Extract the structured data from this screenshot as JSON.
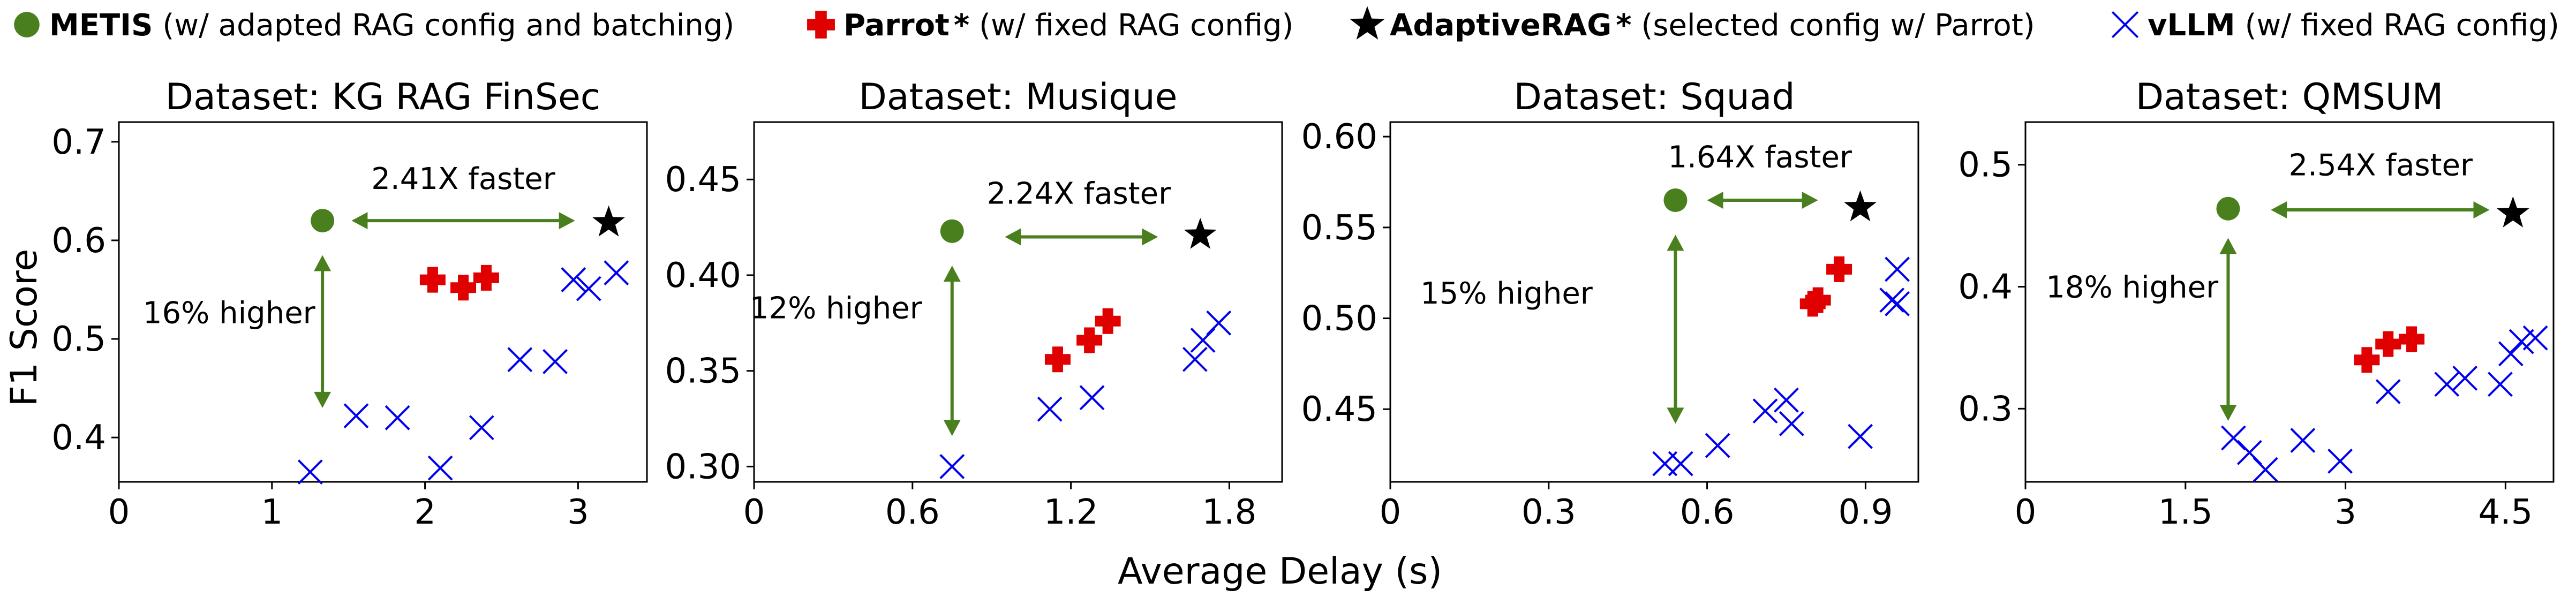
{
  "legend": {
    "items": [
      {
        "marker": "circle",
        "color": "#4a7f1d",
        "name": "METIS",
        "desc": "(w/ adapted RAG config and batching)"
      },
      {
        "marker": "cross",
        "color": "#e00000",
        "name": "Parrot",
        "star": "*",
        "desc": "(w/ fixed RAG config)"
      },
      {
        "marker": "star",
        "color": "#000000",
        "name": "AdaptiveRAG",
        "star": "*",
        "desc": "(selected config w/ Parrot)"
      },
      {
        "marker": "x",
        "color": "#0000ee",
        "name": "vLLM",
        "desc": "(w/ fixed RAG config)"
      }
    ]
  },
  "shared": {
    "xlabel": "Average Delay (s)",
    "ylabel": "F1 Score"
  },
  "colors": {
    "metis": "#4a7f1d",
    "parrot": "#e00000",
    "adaptive": "#000000",
    "vllm": "#0000ee",
    "arrow": "#4a7f1d"
  },
  "chart_data": [
    {
      "type": "scatter",
      "title": "Dataset: KG RAG FinSec",
      "xlim": [
        0,
        3.45
      ],
      "ylim": [
        0.355,
        0.72
      ],
      "xticks": [
        0,
        1,
        2,
        3
      ],
      "xtick_labels": [
        "0",
        "1",
        "2",
        "3"
      ],
      "yticks": [
        0.4,
        0.5,
        0.6,
        0.7
      ],
      "ytick_labels": [
        "0.4",
        "0.5",
        "0.6",
        "0.7"
      ],
      "series": {
        "metis": [
          [
            1.33,
            0.62
          ]
        ],
        "parrot": [
          [
            2.05,
            0.56
          ],
          [
            2.25,
            0.552
          ],
          [
            2.4,
            0.562
          ]
        ],
        "adaptive": [
          [
            3.2,
            0.618
          ]
        ],
        "vllm": [
          [
            1.25,
            0.365
          ],
          [
            1.55,
            0.422
          ],
          [
            1.82,
            0.42
          ],
          [
            2.1,
            0.369
          ],
          [
            2.37,
            0.41
          ],
          [
            2.62,
            0.479
          ],
          [
            2.85,
            0.477
          ],
          [
            2.97,
            0.56
          ],
          [
            3.07,
            0.551
          ],
          [
            3.25,
            0.567
          ]
        ]
      },
      "speed_label": "2.41X faster",
      "speed_arrow": {
        "x1": 1.52,
        "x2": 2.98,
        "y": 0.62
      },
      "speed_text_pos": {
        "x": 2.25,
        "y": 0.663
      },
      "acc_label": "16% higher",
      "acc_arrow": {
        "x": 1.33,
        "y1": 0.585,
        "y2": 0.43
      },
      "acc_text_pos": {
        "x": 0.72,
        "y": 0.527
      }
    },
    {
      "type": "scatter",
      "title": "Dataset: Musique",
      "xlim": [
        0,
        2.0
      ],
      "ylim": [
        0.292,
        0.48
      ],
      "xticks": [
        0,
        0.6,
        1.2,
        1.8
      ],
      "xtick_labels": [
        "0",
        "0.6",
        "1.2",
        "1.8"
      ],
      "yticks": [
        0.3,
        0.35,
        0.4,
        0.45
      ],
      "ytick_labels": [
        "0.30",
        "0.35",
        "0.40",
        "0.45"
      ],
      "series": {
        "metis": [
          [
            0.75,
            0.423
          ]
        ],
        "parrot": [
          [
            1.15,
            0.356
          ],
          [
            1.27,
            0.366
          ],
          [
            1.34,
            0.376
          ]
        ],
        "adaptive": [
          [
            1.69,
            0.421
          ]
        ],
        "vllm": [
          [
            0.75,
            0.3
          ],
          [
            1.12,
            0.33
          ],
          [
            1.28,
            0.336
          ],
          [
            1.67,
            0.356
          ],
          [
            1.7,
            0.366
          ],
          [
            1.76,
            0.375
          ]
        ]
      },
      "speed_label": "2.24X faster",
      "speed_arrow": {
        "x1": 0.95,
        "x2": 1.53,
        "y": 0.42
      },
      "speed_text_pos": {
        "x": 1.23,
        "y": 0.443
      },
      "acc_label": "12% higher",
      "acc_arrow": {
        "x": 0.75,
        "y1": 0.405,
        "y2": 0.316
      },
      "acc_text_pos": {
        "x": 0.31,
        "y": 0.383
      }
    },
    {
      "type": "scatter",
      "title": "Dataset: Squad",
      "xlim": [
        0,
        1.0
      ],
      "ylim": [
        0.41,
        0.608
      ],
      "xticks": [
        0,
        0.3,
        0.6,
        0.9
      ],
      "xtick_labels": [
        "0",
        "0.3",
        "0.6",
        "0.9"
      ],
      "yticks": [
        0.45,
        0.5,
        0.55,
        0.6
      ],
      "ytick_labels": [
        "0.45",
        "0.50",
        "0.55",
        "0.60"
      ],
      "series": {
        "metis": [
          [
            0.54,
            0.565
          ]
        ],
        "parrot": [
          [
            0.8,
            0.508
          ],
          [
            0.81,
            0.51
          ],
          [
            0.85,
            0.527
          ]
        ],
        "adaptive": [
          [
            0.89,
            0.561
          ]
        ],
        "vllm": [
          [
            0.52,
            0.42
          ],
          [
            0.55,
            0.42
          ],
          [
            0.62,
            0.43
          ],
          [
            0.71,
            0.449
          ],
          [
            0.75,
            0.455
          ],
          [
            0.76,
            0.442
          ],
          [
            0.89,
            0.435
          ],
          [
            0.95,
            0.51
          ],
          [
            0.96,
            0.508
          ],
          [
            0.96,
            0.527
          ]
        ]
      },
      "speed_label": "1.64X faster",
      "speed_arrow": {
        "x1": 0.6,
        "x2": 0.81,
        "y": 0.565
      },
      "speed_text_pos": {
        "x": 0.7,
        "y": 0.589
      },
      "acc_label": "15% higher",
      "acc_arrow": {
        "x": 0.54,
        "y1": 0.546,
        "y2": 0.442
      },
      "acc_text_pos": {
        "x": 0.22,
        "y": 0.514
      }
    },
    {
      "type": "scatter",
      "title": "Dataset: QMSUM",
      "xlim": [
        0,
        4.95
      ],
      "ylim": [
        0.24,
        0.535
      ],
      "xticks": [
        0,
        1.5,
        3,
        4.5
      ],
      "xtick_labels": [
        "0",
        "1.5",
        "3",
        "4.5"
      ],
      "yticks": [
        0.3,
        0.4,
        0.5
      ],
      "ytick_labels": [
        "0.3",
        "0.4",
        "0.5"
      ],
      "series": {
        "metis": [
          [
            1.9,
            0.464
          ]
        ],
        "parrot": [
          [
            3.2,
            0.34
          ],
          [
            3.4,
            0.353
          ],
          [
            3.62,
            0.357
          ]
        ],
        "adaptive": [
          [
            4.57,
            0.46
          ]
        ],
        "vllm": [
          [
            1.95,
            0.276
          ],
          [
            2.1,
            0.264
          ],
          [
            2.25,
            0.25
          ],
          [
            2.6,
            0.274
          ],
          [
            2.95,
            0.257
          ],
          [
            3.4,
            0.314
          ],
          [
            3.95,
            0.32
          ],
          [
            4.12,
            0.325
          ],
          [
            4.45,
            0.32
          ],
          [
            4.55,
            0.345
          ],
          [
            4.65,
            0.355
          ],
          [
            4.78,
            0.358
          ]
        ]
      },
      "speed_label": "2.54X faster",
      "speed_arrow": {
        "x1": 2.3,
        "x2": 4.35,
        "y": 0.463
      },
      "speed_text_pos": {
        "x": 3.33,
        "y": 0.5
      },
      "acc_label": "18% higher",
      "acc_arrow": {
        "x": 1.9,
        "y1": 0.44,
        "y2": 0.29
      },
      "acc_text_pos": {
        "x": 1.0,
        "y": 0.4
      }
    }
  ]
}
